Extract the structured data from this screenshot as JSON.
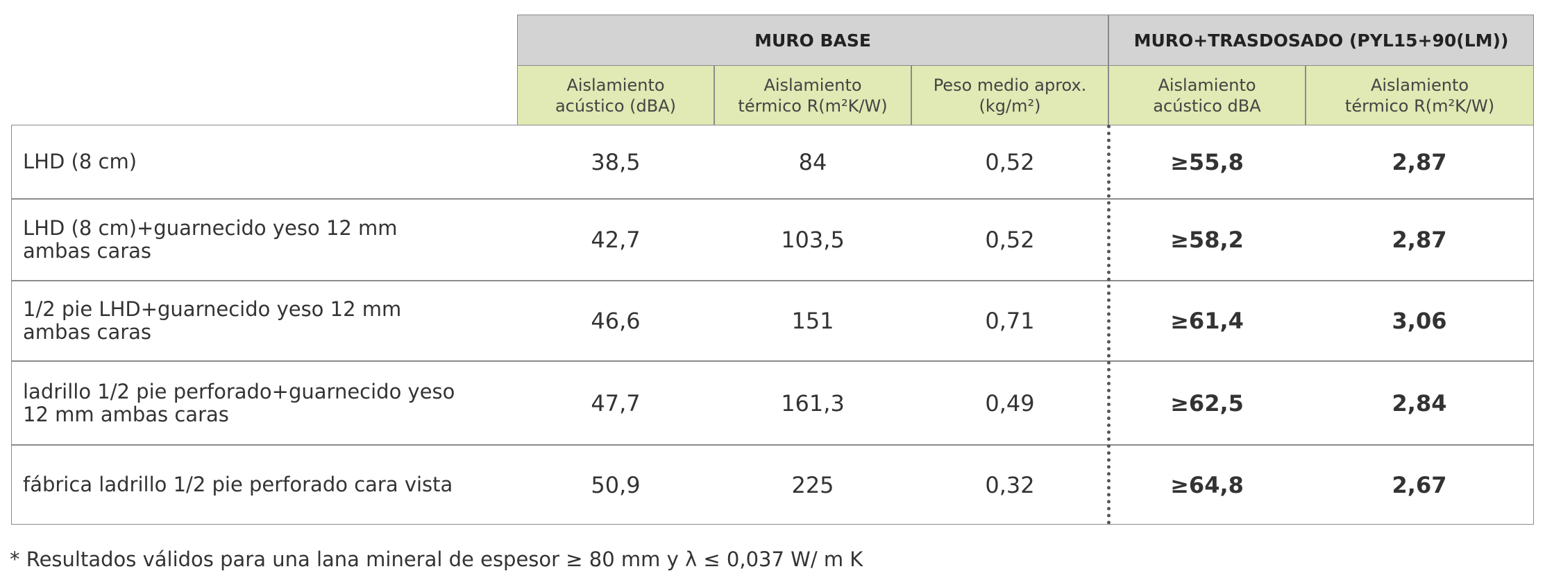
{
  "table": {
    "groups": [
      "MURO BASE",
      "MURO+TRASDOSADO (PYL15+90(LM))"
    ],
    "subheaders": [
      [
        "Aislamiento",
        "acústico (dBA)"
      ],
      [
        "Aislamiento",
        "térmico  R(m²K/W)"
      ],
      [
        "Peso medio aprox.",
        "(kg/m²)"
      ],
      [
        "Aislamiento",
        "acústico dBA"
      ],
      [
        "Aislamiento",
        "térmico  R(m²K/W)"
      ]
    ],
    "rows": [
      [
        [
          "LHD (8 cm)"
        ],
        "38,5",
        "84",
        "0,52",
        "≥55,8",
        "2,87"
      ],
      [
        [
          "LHD (8 cm)+guarnecido yeso 12 mm",
          "ambas caras"
        ],
        "42,7",
        "103,5",
        "0,52",
        "≥58,2",
        "2,87"
      ],
      [
        [
          "1/2 pie LHD+guarnecido yeso 12 mm",
          "ambas caras"
        ],
        "46,6",
        "151",
        "0,71",
        "≥61,4",
        "3,06"
      ],
      [
        [
          "ladrillo 1/2 pie perforado+guarnecido yeso",
          "12 mm ambas caras"
        ],
        "47,7",
        "161,3",
        "0,49",
        "≥62,5",
        "2,84"
      ],
      [
        [
          "fábrica ladrillo 1/2 pie perforado cara vista"
        ],
        "50,9",
        "225",
        "0,32",
        "≥64,8",
        "2,67"
      ]
    ]
  },
  "footnote": "* Resultados válidos para una lana mineral de espesor ≥ 80 mm y λ ≤ 0,037 W/ m K"
}
